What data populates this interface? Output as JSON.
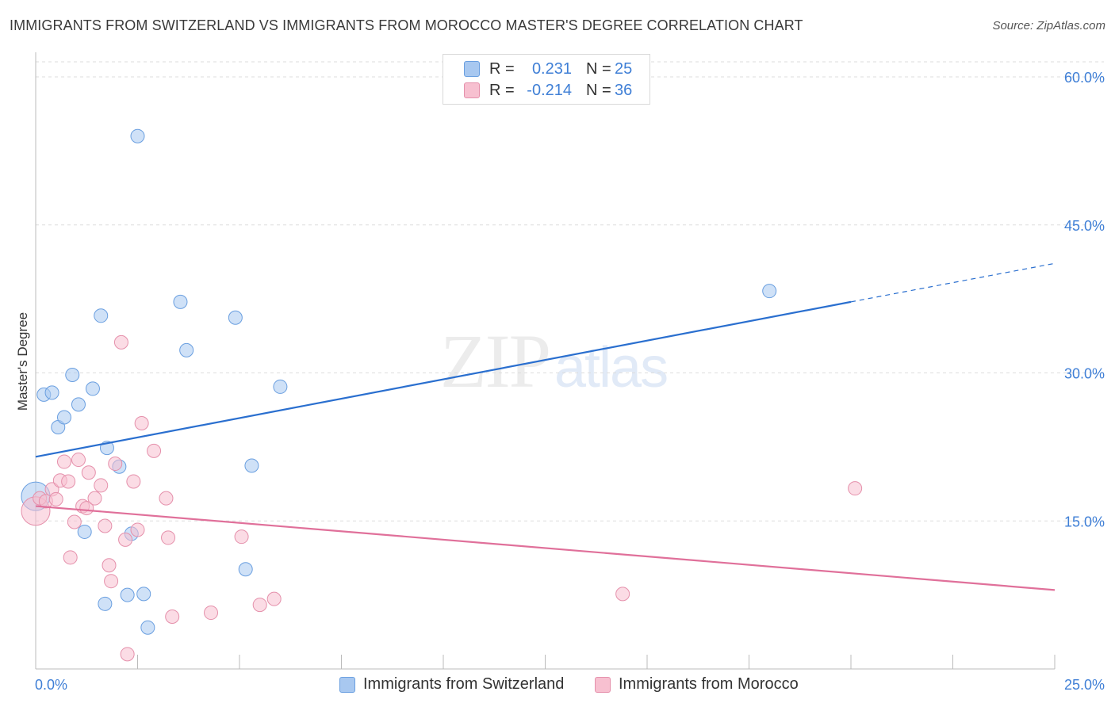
{
  "header": {
    "title": "IMMIGRANTS FROM SWITZERLAND VS IMMIGRANTS FROM MOROCCO MASTER'S DEGREE CORRELATION CHART",
    "source": "Source: ZipAtlas.com"
  },
  "watermark": {
    "zip": "ZIP",
    "atlas": "atlas"
  },
  "legend": {
    "rows": [
      {
        "r_label": "R =",
        "r_value": "0.231",
        "n_label": "N =",
        "n_value": "25",
        "color": "#a8c8f0",
        "border": "#6a9fe0"
      },
      {
        "r_label": "R =",
        "r_value": "-0.214",
        "n_label": "N =",
        "n_value": "36",
        "color": "#f7c0d0",
        "border": "#e590ab"
      }
    ]
  },
  "bottom_legend": {
    "items": [
      {
        "label": "Immigrants from Switzerland",
        "color": "#a8c8f0",
        "border": "#6a9fe0"
      },
      {
        "label": "Immigrants from Morocco",
        "color": "#f7c0d0",
        "border": "#e590ab"
      }
    ]
  },
  "chart_data": {
    "type": "scatter",
    "title": "IMMIGRANTS FROM SWITZERLAND VS IMMIGRANTS FROM MOROCCO MASTER'S DEGREE CORRELATION CHART",
    "xlabel": "",
    "ylabel": "Master's Degree",
    "xlim": [
      0,
      25
    ],
    "ylim": [
      0,
      60
    ],
    "x_tick_labels": [
      "0.0%",
      "25.0%"
    ],
    "y_ticks": [
      15,
      30,
      45,
      60
    ],
    "y_tick_labels": [
      "15.0%",
      "30.0%",
      "45.0%",
      "60.0%"
    ],
    "grid": true,
    "series": [
      {
        "name": "Immigrants from Switzerland",
        "color": "#6a9fe0",
        "fill": "#a8c8f0",
        "line_color": "#2a6fcf",
        "trend": {
          "x0": 0,
          "y0": 21.5,
          "x1": 20,
          "y1": 37.2,
          "dash_to_x": 25,
          "dash_to_y": 41.1
        },
        "points": [
          [
            0.0,
            17.5
          ],
          [
            0.2,
            27.8
          ],
          [
            0.4,
            28.0
          ],
          [
            0.55,
            24.5
          ],
          [
            0.7,
            25.5
          ],
          [
            0.9,
            29.8
          ],
          [
            1.05,
            26.8
          ],
          [
            1.2,
            13.9
          ],
          [
            1.4,
            28.4
          ],
          [
            1.6,
            35.8
          ],
          [
            1.75,
            22.4
          ],
          [
            1.7,
            6.6
          ],
          [
            2.05,
            20.5
          ],
          [
            2.25,
            7.5
          ],
          [
            2.35,
            13.7
          ],
          [
            2.5,
            54.0
          ],
          [
            2.65,
            7.6
          ],
          [
            2.75,
            4.2
          ],
          [
            3.55,
            37.2
          ],
          [
            3.7,
            32.3
          ],
          [
            4.9,
            35.6
          ],
          [
            5.15,
            10.1
          ],
          [
            5.3,
            20.6
          ],
          [
            6.0,
            28.6
          ],
          [
            18.0,
            38.3
          ]
        ]
      },
      {
        "name": "Immigrants from Morocco",
        "color": "#e590ab",
        "fill": "#f7c0d0",
        "line_color": "#e0709a",
        "trend": {
          "x0": 0,
          "y0": 16.5,
          "x1": 25,
          "y1": 8.0
        },
        "points": [
          [
            0.0,
            16.0
          ],
          [
            0.1,
            17.3
          ],
          [
            0.25,
            17.0
          ],
          [
            0.4,
            18.2
          ],
          [
            0.5,
            17.2
          ],
          [
            0.6,
            19.1
          ],
          [
            0.7,
            21.0
          ],
          [
            0.8,
            19.0
          ],
          [
            0.85,
            11.3
          ],
          [
            0.95,
            14.9
          ],
          [
            1.05,
            21.2
          ],
          [
            1.15,
            16.5
          ],
          [
            1.25,
            16.3
          ],
          [
            1.3,
            19.9
          ],
          [
            1.45,
            17.3
          ],
          [
            1.6,
            18.6
          ],
          [
            1.7,
            14.5
          ],
          [
            1.8,
            10.5
          ],
          [
            1.85,
            8.9
          ],
          [
            1.95,
            20.8
          ],
          [
            2.1,
            33.1
          ],
          [
            2.2,
            13.1
          ],
          [
            2.25,
            1.5
          ],
          [
            2.4,
            19.0
          ],
          [
            2.5,
            14.1
          ],
          [
            2.6,
            24.9
          ],
          [
            2.9,
            22.1
          ],
          [
            3.2,
            17.3
          ],
          [
            3.25,
            13.3
          ],
          [
            3.35,
            5.3
          ],
          [
            4.3,
            5.7
          ],
          [
            5.05,
            13.4
          ],
          [
            5.5,
            6.5
          ],
          [
            5.85,
            7.1
          ],
          [
            14.4,
            7.6
          ],
          [
            20.1,
            18.3
          ]
        ]
      }
    ]
  }
}
